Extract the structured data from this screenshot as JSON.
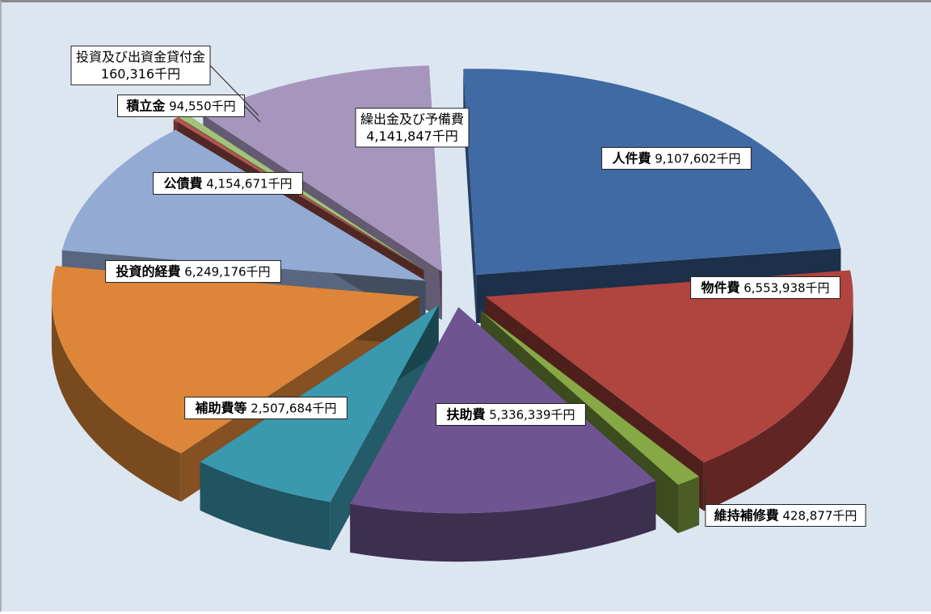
{
  "chart_data": {
    "type": "pie",
    "unit": "千円",
    "slices": [
      {
        "name": "人件費",
        "value": 9107602,
        "value_text": "9,107,602千円",
        "color": "#3f6aa3"
      },
      {
        "name": "物件費",
        "value": 6553938,
        "value_text": "6,553,938千円",
        "color": "#b0443f"
      },
      {
        "name": "維持補修費",
        "value": 428877,
        "value_text": "428,877千円",
        "color": "#86a945"
      },
      {
        "name": "扶助費",
        "value": 5336339,
        "value_text": "5,336,339千円",
        "color": "#6e5592"
      },
      {
        "name": "補助費等",
        "value": 2507684,
        "value_text": "2,507,684千円",
        "color": "#3a99ae"
      },
      {
        "name": "投資的経費",
        "value": 6249176,
        "value_text": "6,249,176千円",
        "color": "#dd8639"
      },
      {
        "name": "公債費",
        "value": 4154671,
        "value_text": "4,154,671千円",
        "color": "#93aad3"
      },
      {
        "name": "積立金",
        "value": 94550,
        "value_text": "94,550千円",
        "color": "#b25650"
      },
      {
        "name": "投資及び出資金貸付金",
        "value": 160316,
        "value_text": "160,316千円",
        "color": "#a3c27a"
      },
      {
        "name": "繰出金及び予備費",
        "value": 4141847,
        "value_text": "4,141,847千円",
        "color": "#a696bd"
      }
    ]
  }
}
